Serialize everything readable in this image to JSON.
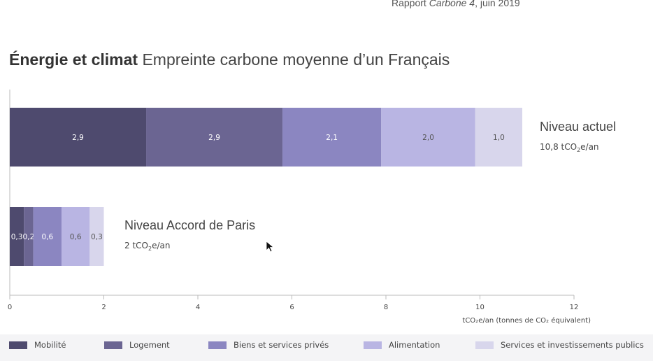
{
  "source": {
    "prefix": "Rapport ",
    "emph": "Carbone 4",
    "suffix": ", juin 2019"
  },
  "title": {
    "bold": "Énergie et climat",
    "rest": " Empreinte carbone moyenne d’un Français"
  },
  "colors": [
    "#4e4a6e",
    "#6b6592",
    "#8b86c1",
    "#b9b5e3",
    "#d8d6ec"
  ],
  "chart_data": {
    "type": "bar",
    "orientation": "horizontal",
    "stacked": true,
    "xlim": [
      0,
      12
    ],
    "x_ticks": [
      "0",
      "2",
      "4",
      "6",
      "8",
      "10",
      "12"
    ],
    "xlabel": "tCO₂e/an (tonnes de CO₂ équivalent)",
    "series_names": [
      "Mobilité",
      "Logement",
      "Biens et services privés",
      "Alimentation",
      "Services et investissements publics"
    ],
    "bars": [
      {
        "name": "Niveau actuel",
        "total_prefix": "10,8 tCO",
        "total_suffix": "e/an",
        "values": [
          2.9,
          2.9,
          2.1,
          2.0,
          1.0
        ],
        "labels": [
          "2,9",
          "2,9",
          "2,1",
          "2,0",
          "1,0"
        ]
      },
      {
        "name": "Niveau Accord de Paris",
        "total_prefix": "2 tCO",
        "total_suffix": "e/an",
        "values": [
          0.3,
          0.2,
          0.6,
          0.6,
          0.3
        ],
        "labels": [
          "0,3",
          "0,2",
          "0,6",
          "0,6",
          "0,3"
        ]
      }
    ]
  }
}
